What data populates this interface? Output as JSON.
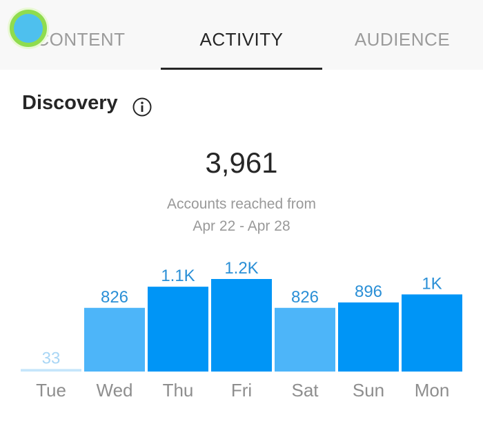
{
  "tabs": [
    {
      "label": "CONTENT",
      "active": false
    },
    {
      "label": "ACTIVITY",
      "active": true
    },
    {
      "label": "AUDIENCE",
      "active": false
    }
  ],
  "section": {
    "title": "Discovery",
    "info_icon": "info-circle-icon"
  },
  "summary": {
    "value": "3,961",
    "caption_line1": "Accounts reached from",
    "caption_line2": "Apr 22 - Apr 28"
  },
  "colors": {
    "bar_dark": "#0095f6",
    "bar_light": "#4db5f9",
    "bar_faint": "#c6e6fb",
    "label_blue": "#2a8fd6",
    "label_faint": "#a9d6f5",
    "day_gray": "#8e8e8e"
  },
  "chart_data": {
    "type": "bar",
    "categories": [
      "Tue",
      "Wed",
      "Thu",
      "Fri",
      "Sat",
      "Sun",
      "Mon"
    ],
    "values": [
      33,
      826,
      1100,
      1200,
      826,
      896,
      1000
    ],
    "value_labels": [
      "33",
      "826",
      "1.1K",
      "1.2K",
      "826",
      "896",
      "1K"
    ],
    "shade": [
      "faint",
      "light",
      "dark",
      "dark",
      "light",
      "dark",
      "dark"
    ],
    "ylim": [
      0,
      1200
    ]
  }
}
